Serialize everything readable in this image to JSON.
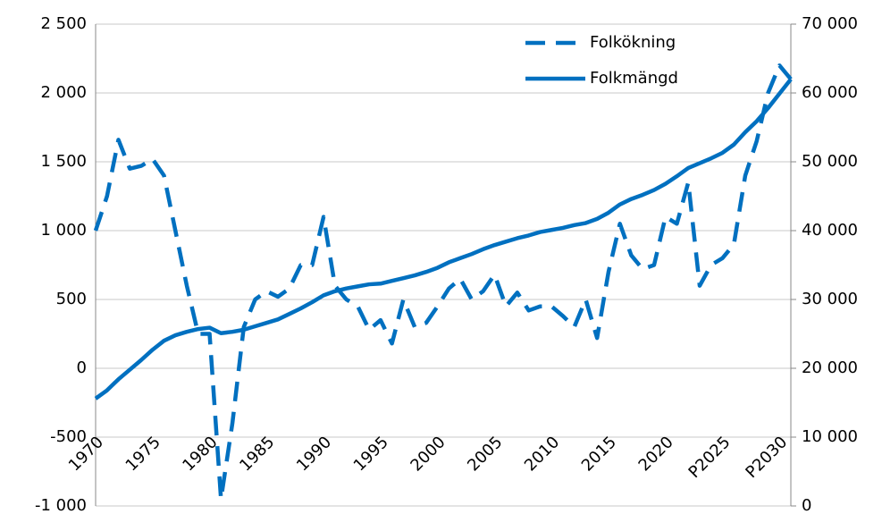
{
  "chart_data": {
    "type": "line",
    "categories": [
      "1970",
      null,
      null,
      null,
      null,
      "1975",
      null,
      null,
      null,
      null,
      "1980",
      null,
      null,
      null,
      null,
      "1985",
      null,
      null,
      null,
      null,
      "1990",
      null,
      null,
      null,
      null,
      "1995",
      null,
      null,
      null,
      null,
      "2000",
      null,
      null,
      null,
      null,
      "2005",
      null,
      null,
      null,
      null,
      "2010",
      null,
      null,
      null,
      null,
      "2015",
      null,
      null,
      null,
      null,
      "2020",
      null,
      null,
      null,
      null,
      "P2025",
      null,
      null,
      null,
      null,
      "P2030",
      null
    ],
    "series": [
      {
        "name": "Folkökning",
        "color": "#0070c0",
        "dash": true,
        "axis": "y",
        "values": [
          1000,
          1250,
          1660,
          1450,
          1470,
          1520,
          1400,
          1000,
          600,
          250,
          250,
          -950,
          -400,
          300,
          500,
          560,
          520,
          580,
          750,
          750,
          1100,
          600,
          500,
          450,
          280,
          350,
          180,
          500,
          300,
          330,
          450,
          580,
          650,
          500,
          560,
          680,
          450,
          550,
          420,
          450,
          450,
          380,
          300,
          500,
          220,
          700,
          1050,
          820,
          720,
          750,
          1100,
          1050,
          1350,
          600,
          750,
          800,
          900,
          1400,
          1650,
          2000,
          2200,
          2100
        ]
      },
      {
        "name": "Folkmängd",
        "color": "#0070c0",
        "dash": false,
        "axis": "y2",
        "values": [
          15600,
          16800,
          18400,
          19800,
          21200,
          22700,
          24000,
          24800,
          25300,
          25700,
          25900,
          25100,
          25300,
          25600,
          26100,
          26600,
          27100,
          27900,
          28700,
          29600,
          30600,
          31200,
          31600,
          31900,
          32200,
          32300,
          32700,
          33100,
          33500,
          34000,
          34600,
          35400,
          36000,
          36600,
          37300,
          37900,
          38400,
          38900,
          39300,
          39800,
          40100,
          40400,
          40800,
          41100,
          41700,
          42600,
          43800,
          44600,
          45200,
          45900,
          46800,
          47900,
          49100,
          49800,
          50500,
          51300,
          52500,
          54300,
          55900,
          57800,
          59900,
          62000
        ]
      }
    ],
    "ylim": [
      -1000,
      2500
    ],
    "yticks": [
      {
        "value": -1000,
        "label": "-1 000"
      },
      {
        "value": -500,
        "label": "-500"
      },
      0,
      500,
      {
        "value": 1000,
        "label": "1 000"
      },
      {
        "value": 1500,
        "label": "1 500"
      },
      {
        "value": 2000,
        "label": "2 000"
      },
      {
        "value": 2500,
        "label": "2 500"
      }
    ],
    "y2lim": [
      0,
      70000
    ],
    "y2ticks": [
      0,
      {
        "value": 10000,
        "label": "10 000"
      },
      {
        "value": 20000,
        "label": "20 000"
      },
      {
        "value": 30000,
        "label": "30 000"
      },
      {
        "value": 40000,
        "label": "40 000"
      },
      {
        "value": 50000,
        "label": "50 000"
      },
      {
        "value": 60000,
        "label": "60 000"
      },
      {
        "value": 70000,
        "label": "70 000"
      }
    ],
    "grid": true,
    "legend": "top-right"
  }
}
